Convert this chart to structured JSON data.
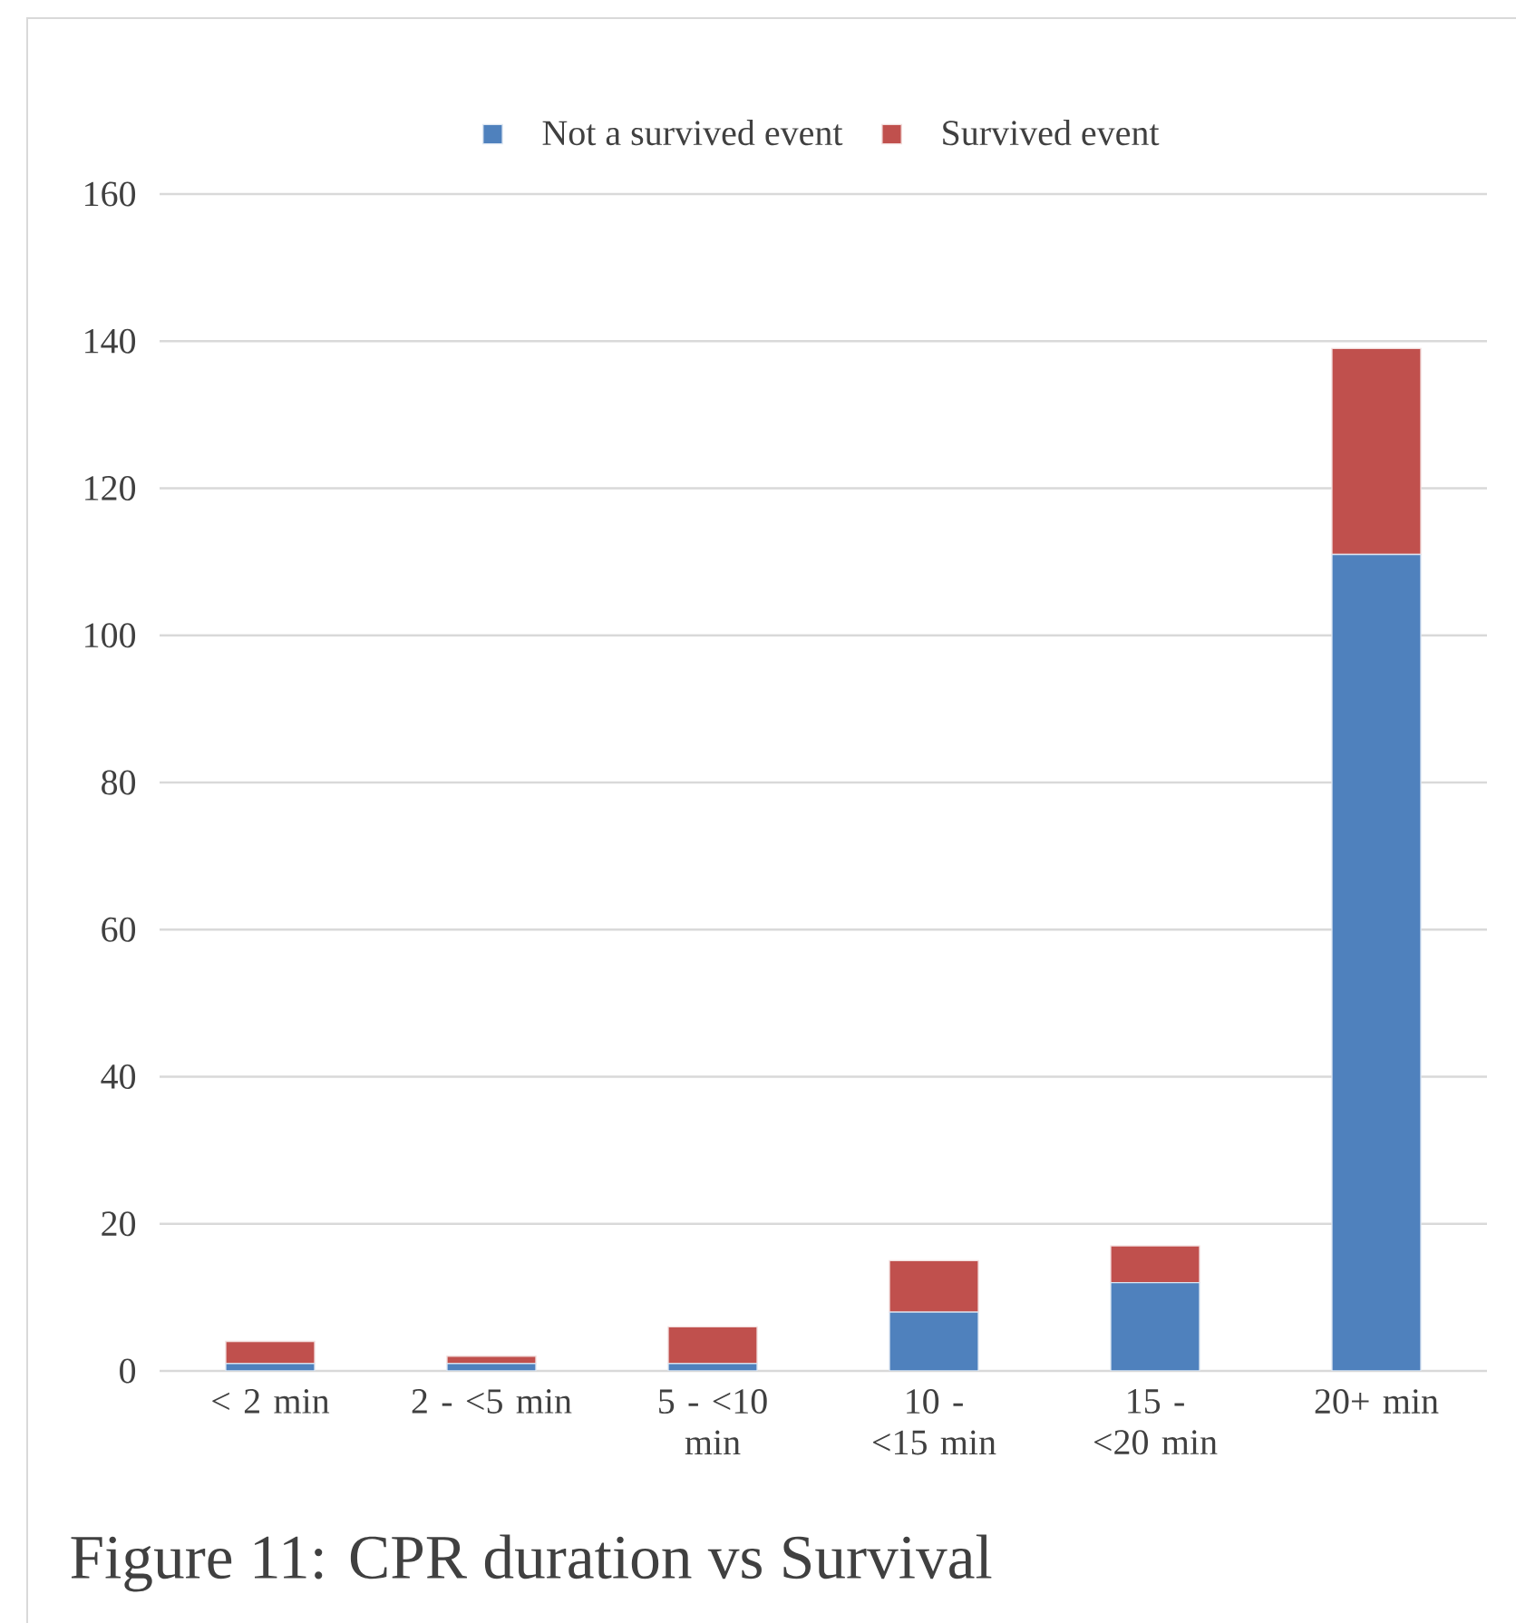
{
  "chart_data": {
    "type": "bar",
    "title": "Figure 11: CPR duration vs Survival",
    "categories": [
      "< 2 min",
      "2 - <5 min",
      "5 - <10 min",
      "10 - <15 min",
      "15 - <20 min",
      "20+ min"
    ],
    "series": [
      {
        "name": "Not a survived event",
        "color": "#4f81bd",
        "values": [
          1,
          1,
          1,
          8,
          12,
          111
        ]
      },
      {
        "name": "Survived event",
        "color": "#c0504d",
        "values": [
          3,
          1,
          5,
          7,
          5,
          28
        ]
      }
    ],
    "stacked": true,
    "ylim": [
      0,
      160
    ],
    "yticks": [
      0,
      20,
      40,
      60,
      80,
      100,
      120,
      140,
      160
    ],
    "grid": "y",
    "legend": "top"
  }
}
